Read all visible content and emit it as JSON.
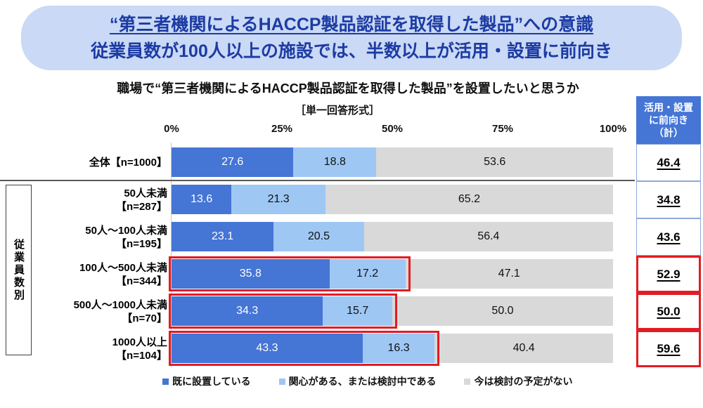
{
  "banner": {
    "line1": "“第三者機関によるHACCP製品認証を取得した製品”への意識",
    "line2": "従業員数が100人以上の施設では、半数以上が活用・設置に前向き"
  },
  "question": {
    "title": "職場で“第三者機関によるHACCP製品認証を取得した製品”を設置したいと思うか",
    "format_note": "［単一回答形式］"
  },
  "axis": {
    "ticks": [
      "0%",
      "25%",
      "50%",
      "75%",
      "100%"
    ]
  },
  "group": {
    "label": "従業員数別"
  },
  "summary": {
    "header_lines": [
      "活用・設置",
      "に前向き",
      "（計）"
    ]
  },
  "legend": {
    "items": [
      {
        "label": "既に設置している",
        "color": "#4575d5"
      },
      {
        "label": "関心がある、または検討中である",
        "color": "#9ec7f4"
      },
      {
        "label": "今は検討の予定がない",
        "color": "#d9d9d9"
      }
    ]
  },
  "rows": [
    {
      "label1": "全体【n=1000】",
      "label2": "",
      "cells": [
        "27.6",
        "18.8",
        "53.6"
      ],
      "total": "46.4",
      "highlight": false
    },
    {
      "label1": "50人未満",
      "label2": "【n=287】",
      "cells": [
        "13.6",
        "21.3",
        "65.2"
      ],
      "total": "34.8",
      "highlight": false
    },
    {
      "label1": "50人～100人未満",
      "label2": "【n=195】",
      "cells": [
        "23.1",
        "20.5",
        "56.4"
      ],
      "total": "43.6",
      "highlight": false
    },
    {
      "label1": "100人～500人未満",
      "label2": "【n=344】",
      "cells": [
        "35.8",
        "17.2",
        "47.1"
      ],
      "total": "52.9",
      "highlight": true
    },
    {
      "label1": "500人～1000人未満",
      "label2": "【n=70】",
      "cells": [
        "34.3",
        "15.7",
        "50.0"
      ],
      "total": "50.0",
      "highlight": true
    },
    {
      "label1": "1000人以上",
      "label2": "【n=104】",
      "cells": [
        "43.3",
        "16.3",
        "40.4"
      ],
      "total": "59.6",
      "highlight": true
    }
  ],
  "chart_data": {
    "type": "bar",
    "orientation": "horizontal-stacked",
    "title": "職場で“第三者機関によるHACCP製品認証を取得した製品”を設置したいと思うか",
    "subtitle": "［単一回答形式］",
    "categories": [
      "全体【n=1000】",
      "50人未満【n=287】",
      "50人～100人未満【n=195】",
      "100人～500人未満【n=344】",
      "500人～1000人未満【n=70】",
      "1000人以上【n=104】"
    ],
    "series": [
      {
        "name": "既に設置している",
        "color": "#4575d5",
        "values": [
          27.6,
          13.6,
          23.1,
          35.8,
          34.3,
          43.3
        ]
      },
      {
        "name": "関心がある、または検討中である",
        "color": "#9ec7f4",
        "values": [
          18.8,
          21.3,
          20.5,
          17.2,
          15.7,
          16.3
        ]
      },
      {
        "name": "今は検討の予定がない",
        "color": "#d9d9d9",
        "values": [
          53.6,
          65.2,
          56.4,
          47.1,
          50.0,
          40.4
        ]
      }
    ],
    "totals": {
      "label": "活用・設置に前向き（計）",
      "values": [
        46.4,
        34.8,
        43.6,
        52.9,
        50.0,
        59.6
      ]
    },
    "highlighted_categories": [
      "100人～500人未満【n=344】",
      "500人～1000人未満【n=70】",
      "1000人以上【n=104】"
    ],
    "xlim": [
      0,
      100
    ],
    "x_ticks": [
      "0%",
      "25%",
      "50%",
      "75%",
      "100%"
    ],
    "axis_group_label": "従業員数別",
    "legend_position": "bottom",
    "grid": false
  }
}
